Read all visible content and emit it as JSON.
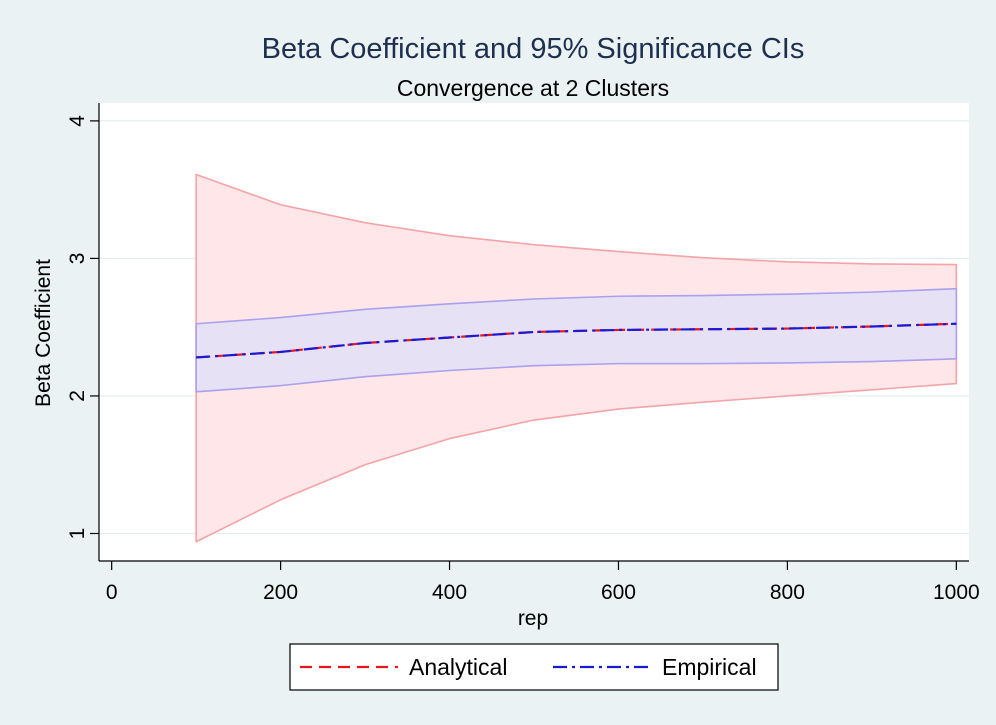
{
  "chart_data": {
    "type": "line",
    "title": "Beta Coefficient and 95% Significance CIs",
    "subtitle": "Convergence at 2 Clusters",
    "xlabel": "rep",
    "ylabel": "Beta Coefficient",
    "xlim": [
      -15,
      1015
    ],
    "ylim": [
      0.8,
      4.13
    ],
    "x_ticks": [
      0,
      200,
      400,
      600,
      800,
      1000
    ],
    "y_ticks": [
      1,
      2,
      3,
      4
    ],
    "grid": true,
    "legend_position": "bottom",
    "x": [
      100,
      200,
      300,
      400,
      500,
      600,
      700,
      800,
      900,
      1000
    ],
    "series": [
      {
        "name": "Analytical",
        "style": "dashed",
        "color": "#e8141e",
        "values": [
          2.28,
          2.32,
          2.385,
          2.425,
          2.465,
          2.48,
          2.485,
          2.49,
          2.505,
          2.525
        ]
      },
      {
        "name": "Empirical",
        "style": "dash-dot",
        "color": "#1a1ad6",
        "values": [
          2.28,
          2.32,
          2.385,
          2.425,
          2.465,
          2.48,
          2.485,
          2.49,
          2.505,
          2.525
        ]
      }
    ],
    "bands": [
      {
        "fill": "#ffe6e8",
        "stroke": "#f5a3a8",
        "upper": [
          3.61,
          3.39,
          3.26,
          3.165,
          3.1,
          3.05,
          3.005,
          2.975,
          2.96,
          2.955
        ],
        "lower": [
          0.94,
          1.245,
          1.5,
          1.69,
          1.825,
          1.905,
          1.955,
          2.0,
          2.045,
          2.09
        ]
      },
      {
        "fill": "#e6e1f4",
        "stroke": "#aaa0f0",
        "upper": [
          2.525,
          2.57,
          2.63,
          2.67,
          2.705,
          2.725,
          2.73,
          2.74,
          2.755,
          2.78
        ],
        "lower": [
          2.03,
          2.075,
          2.14,
          2.185,
          2.22,
          2.235,
          2.235,
          2.24,
          2.25,
          2.27
        ]
      }
    ],
    "colors": {
      "background": "#eaf2f3",
      "plot_area": "#ffffff",
      "grid": "#e3edee"
    }
  }
}
